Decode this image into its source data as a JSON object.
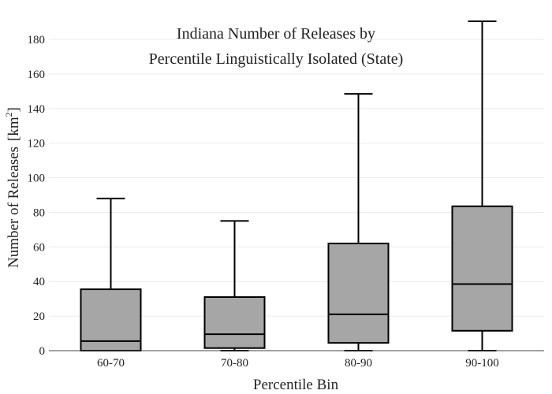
{
  "chart_data": {
    "type": "box",
    "title_lines": [
      "Indiana Number of Releases by",
      "Percentile Linguistically Isolated (State)"
    ],
    "xlabel": "Percentile Bin",
    "ylabel": "Number of Releases",
    "ylabel_unit": "[km",
    "ylabel_unit_sup": "2",
    "ylabel_unit_close": "]",
    "ylim": [
      0,
      190
    ],
    "yticks": [
      0,
      20,
      40,
      60,
      80,
      100,
      120,
      140,
      160,
      180
    ],
    "grid": true,
    "categories": [
      "60-70",
      "70-80",
      "80-90",
      "90-100"
    ],
    "boxes": [
      {
        "min": 0,
        "q1": 0,
        "median": 5.5,
        "q3": 35.5,
        "max": 88
      },
      {
        "min": 0,
        "q1": 1.5,
        "median": 9.5,
        "q3": 31,
        "max": 75
      },
      {
        "min": 0,
        "q1": 4.5,
        "median": 21,
        "q3": 62,
        "max": 148.5
      },
      {
        "min": 0,
        "q1": 11.5,
        "median": 38.5,
        "q3": 83.5,
        "max": 190.5
      }
    ],
    "box_color": "#a6a6a6",
    "line_color": "#000000",
    "grid_color": "#ebebeb"
  }
}
